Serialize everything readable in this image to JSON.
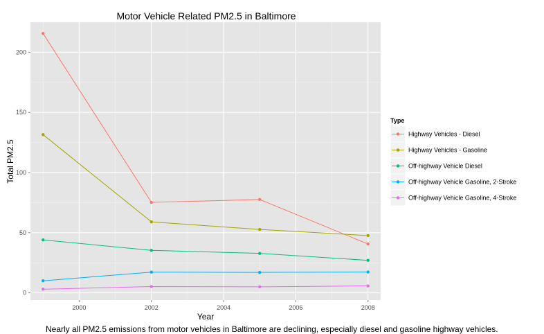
{
  "chart_data": {
    "type": "line",
    "title": "Motor Vehicle Related PM2.5 in Baltimore",
    "xlabel": "Year",
    "ylabel": "Total PM2.5",
    "xlim": [
      1998.65,
      2008.35
    ],
    "ylim": [
      -6,
      225
    ],
    "x_ticks": [
      2000,
      2002,
      2004,
      2006,
      2008
    ],
    "y_ticks": [
      0,
      50,
      100,
      150,
      200
    ],
    "grid": true,
    "legend": {
      "title": "Type",
      "position": "right"
    },
    "x": [
      1999,
      2002,
      2005,
      2008
    ],
    "series": [
      {
        "name": "Highway Vehicles - Diesel",
        "color": "#F8766D",
        "values": [
          215.6,
          75.2,
          77.6,
          40.6
        ]
      },
      {
        "name": "Highway Vehicles - Gasoline",
        "color": "#A3A500",
        "values": [
          131.5,
          59.0,
          52.7,
          47.6
        ]
      },
      {
        "name": "Off-highway Vehicle Diesel",
        "color": "#00BF7D",
        "values": [
          44.0,
          35.3,
          32.8,
          27.0
        ]
      },
      {
        "name": "Off-highway Vehicle Gasoline, 2-Stroke",
        "color": "#00B0F6",
        "values": [
          10.0,
          17.2,
          17.0,
          17.3
        ]
      },
      {
        "name": "Off-highway Vehicle Gasoline, 4-Stroke",
        "color": "#E76BF3",
        "values": [
          3.0,
          5.2,
          5.0,
          5.8
        ]
      }
    ]
  },
  "caption": "Nearly all PM2.5 emissions from motor vehicles in Baltimore are declining, especially diesel and gasoline highway vehicles."
}
